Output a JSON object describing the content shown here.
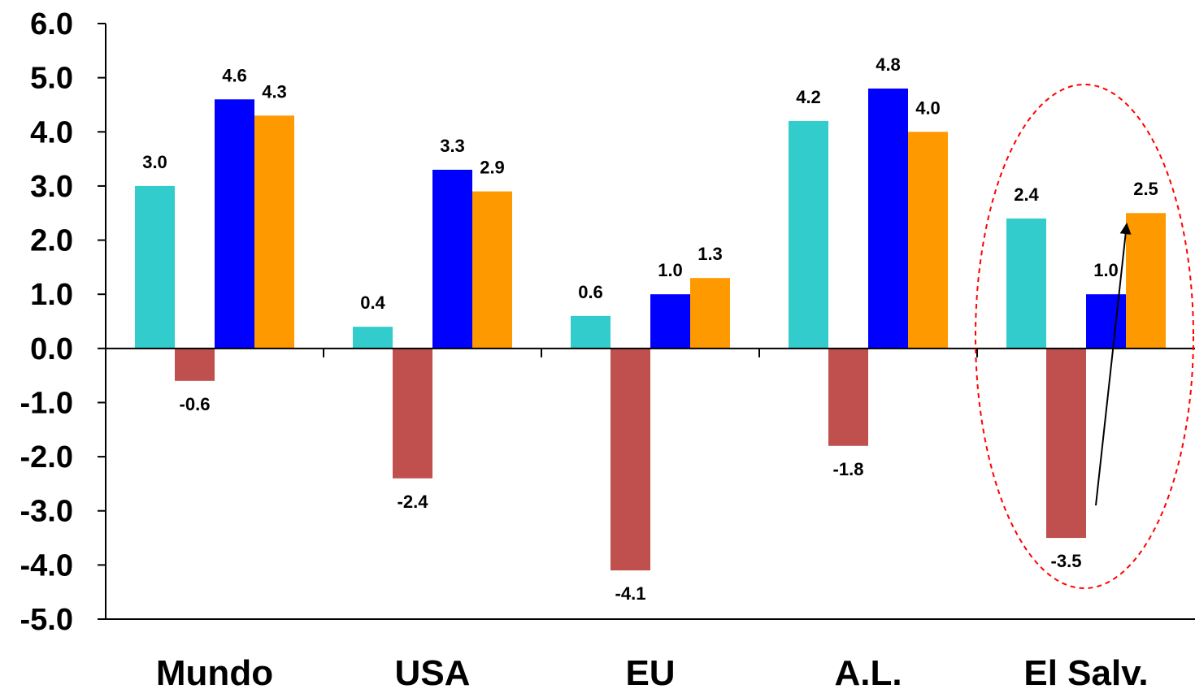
{
  "chart_data": {
    "type": "bar",
    "categories": [
      "Mundo",
      "USA",
      "EU",
      "A.L.",
      "El Salv."
    ],
    "series": [
      {
        "values": [
          3.0,
          0.4,
          0.6,
          4.2,
          2.4
        ],
        "color": "#33CCCC"
      },
      {
        "values": [
          -0.6,
          -2.4,
          -4.1,
          -1.8,
          -3.5
        ],
        "color": "#C0504D"
      },
      {
        "values": [
          4.6,
          3.3,
          1.0,
          4.8,
          1.0
        ],
        "color": "#0000FF"
      },
      {
        "values": [
          4.3,
          2.9,
          1.3,
          4.0,
          2.5
        ],
        "color": "#FF9900"
      }
    ],
    "data_labels": [
      [
        "3.0",
        "0.4",
        "0.6",
        "4.2",
        "2.4"
      ],
      [
        "-0.6",
        "-2.4",
        "-4.1",
        "-1.8",
        "-3.5"
      ],
      [
        "4.6",
        "3.3",
        "1.0",
        "4.8",
        "1.0"
      ],
      [
        "4.3",
        "2.9",
        "1.3",
        "4.0",
        "2.5"
      ]
    ],
    "y_ticks": [
      "6.0",
      "5.0",
      "4.0",
      "3.0",
      "2.0",
      "1.0",
      "0.0",
      "-1.0",
      "-2.0",
      "-3.0",
      "-4.0",
      "-5.0"
    ],
    "ylim": [
      -5,
      6
    ],
    "grid": false,
    "legend": "none",
    "annotations": [
      {
        "type": "ellipse",
        "category": "El Salv.",
        "style": "dashed",
        "color": "#FF0000"
      },
      {
        "type": "arrow",
        "category": "El Salv.",
        "from_value": -2.9,
        "to_value": 2.3,
        "color": "#000000"
      }
    ]
  }
}
